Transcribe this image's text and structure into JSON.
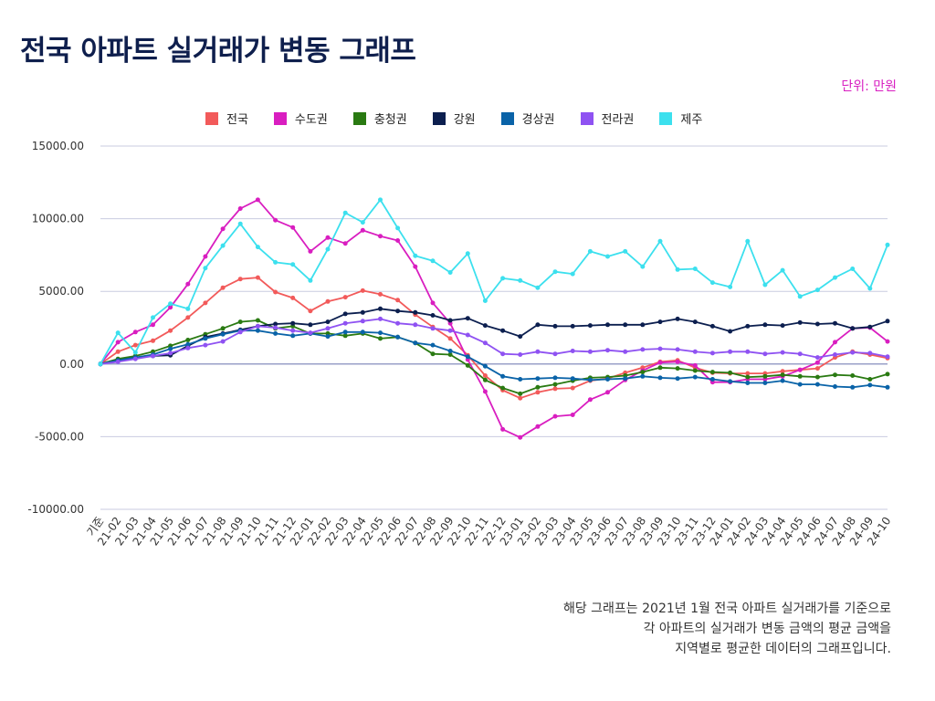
{
  "title": "전국 아파트 실거래가 변동 그래프",
  "unit_label": "단위: 만원",
  "note_lines": [
    "해당 그래프는 2021년 1월 전국 아파트 실거래가를 기준으로",
    "각 아파트의 실거래가 변동 금액의 평균 금액을",
    "지역별로 평균한 데이터의 그래프입니다."
  ],
  "chart_data": {
    "type": "line",
    "title": "전국 아파트 실거래가 변동 그래프",
    "ylim": [
      -10000,
      15000
    ],
    "y_ticks": [
      15000,
      10000,
      5000,
      0,
      -5000,
      -10000
    ],
    "y_tick_labels": [
      "15000.00",
      "10000.00",
      "5000.00",
      "0.00",
      "-5000.00",
      "-10000.00"
    ],
    "grid": true,
    "legend_position": "top",
    "categories": [
      "기준",
      "21-02",
      "21-03",
      "21-04",
      "21-05",
      "21-06",
      "21-07",
      "21-08",
      "21-09",
      "21-10",
      "21-11",
      "21-12",
      "22-01",
      "22-02",
      "22-03",
      "22-04",
      "22-05",
      "22-06",
      "22-07",
      "22-08",
      "22-09",
      "22-10",
      "22-11",
      "22-12",
      "23-01",
      "23-02",
      "23-03",
      "23-04",
      "23-05",
      "23-06",
      "23-07",
      "23-08",
      "23-09",
      "23-10",
      "23-11",
      "23-12",
      "24-01",
      "24-02",
      "24-03",
      "24-04",
      "24-05",
      "24-06",
      "24-07",
      "24-08",
      "24-09",
      "24-10"
    ],
    "series": [
      {
        "name": "전국",
        "color": "#f25a5a",
        "values": [
          0,
          850,
          1300,
          1600,
          2300,
          3200,
          4200,
          5250,
          5850,
          5950,
          4950,
          4550,
          3650,
          4300,
          4600,
          5050,
          4800,
          4400,
          3400,
          2550,
          1750,
          600,
          -800,
          -1800,
          -2350,
          -1950,
          -1700,
          -1650,
          -1150,
          -1000,
          -600,
          -250,
          150,
          250,
          -250,
          -600,
          -650,
          -650,
          -650,
          -500,
          -400,
          -300,
          450,
          850,
          650,
          400
        ]
      },
      {
        "name": "수도권",
        "color": "#d91ec0",
        "values": [
          0,
          1500,
          2200,
          2700,
          3900,
          5500,
          7400,
          9300,
          10700,
          11300,
          9900,
          9400,
          7750,
          8700,
          8300,
          9200,
          8800,
          8500,
          6700,
          4200,
          2800,
          300,
          -1900,
          -4500,
          -5050,
          -4300,
          -3600,
          -3500,
          -2450,
          -1950,
          -1100,
          -450,
          100,
          150,
          -100,
          -1250,
          -1250,
          -1050,
          -1050,
          -850,
          -400,
          100,
          1500,
          2450,
          2500,
          1550
        ]
      },
      {
        "name": "충청권",
        "color": "#2a7a12",
        "values": [
          0,
          350,
          550,
          850,
          1250,
          1650,
          2050,
          2450,
          2900,
          3000,
          2450,
          2600,
          2100,
          2100,
          1950,
          2100,
          1750,
          1850,
          1450,
          700,
          650,
          -100,
          -1100,
          -1650,
          -2050,
          -1600,
          -1400,
          -1150,
          -950,
          -900,
          -800,
          -550,
          -250,
          -300,
          -450,
          -550,
          -600,
          -900,
          -850,
          -750,
          -850,
          -900,
          -750,
          -800,
          -1050,
          -700
        ]
      },
      {
        "name": "강원",
        "color": "#0c1f4f",
        "values": [
          0,
          250,
          450,
          550,
          600,
          1250,
          1850,
          2100,
          2350,
          2600,
          2750,
          2800,
          2700,
          2900,
          3450,
          3550,
          3800,
          3650,
          3550,
          3350,
          3000,
          3150,
          2650,
          2300,
          1900,
          2700,
          2600,
          2600,
          2650,
          2700,
          2700,
          2700,
          2900,
          3100,
          2900,
          2600,
          2250,
          2600,
          2700,
          2650,
          2850,
          2750,
          2800,
          2450,
          2550,
          2950
        ]
      },
      {
        "name": "경상권",
        "color": "#0a63a8",
        "values": [
          0,
          250,
          450,
          650,
          1050,
          1350,
          1750,
          2050,
          2300,
          2300,
          2100,
          1950,
          2100,
          1900,
          2200,
          2200,
          2150,
          1850,
          1450,
          1300,
          900,
          500,
          -150,
          -850,
          -1050,
          -1000,
          -950,
          -1000,
          -1100,
          -1050,
          -1000,
          -850,
          -950,
          -1000,
          -900,
          -1050,
          -1200,
          -1300,
          -1300,
          -1150,
          -1400,
          -1400,
          -1550,
          -1600,
          -1450,
          -1600
        ]
      },
      {
        "name": "전라권",
        "color": "#8f52f2",
        "values": [
          0,
          150,
          350,
          550,
          750,
          1100,
          1300,
          1550,
          2200,
          2600,
          2500,
          2300,
          2150,
          2450,
          2800,
          2950,
          3100,
          2800,
          2700,
          2450,
          2300,
          2000,
          1450,
          700,
          650,
          850,
          700,
          900,
          850,
          950,
          850,
          1000,
          1050,
          1000,
          850,
          750,
          850,
          850,
          700,
          800,
          700,
          450,
          650,
          800,
          750,
          500
        ]
      },
      {
        "name": "제주",
        "color": "#3ce0ee",
        "values": [
          0,
          2150,
          800,
          3200,
          4150,
          3800,
          6600,
          8150,
          9650,
          8050,
          7000,
          6850,
          5750,
          7900,
          10400,
          9750,
          11300,
          9350,
          7450,
          7100,
          6300,
          7600,
          4350,
          5900,
          5750,
          5250,
          6350,
          6200,
          7750,
          7400,
          7750,
          6700,
          8450,
          6500,
          6550,
          5600,
          5300,
          8450,
          5450,
          6450,
          4650,
          5100,
          5950,
          6550,
          5200,
          8200
        ]
      }
    ]
  }
}
